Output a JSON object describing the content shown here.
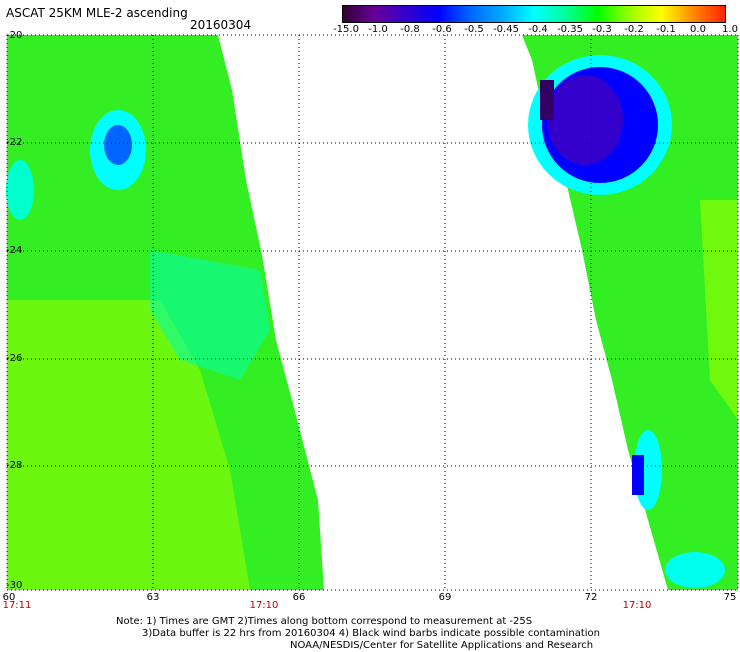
{
  "header": {
    "title": "ASCAT 25KM MLE-2 ascending",
    "date": "20160304"
  },
  "colorbar": {
    "labels": [
      "-15.0",
      "-1.0",
      "-0.8",
      "-0.6",
      "-0.5",
      "-0.45",
      "-0.4",
      "-0.35",
      "-0.3",
      "-0.2",
      "-0.1",
      "0.0",
      "1.0"
    ],
    "colors": [
      "#330033",
      "#660099",
      "#3300cc",
      "#0000ff",
      "#0066ff",
      "#00aaff",
      "#00ffff",
      "#00ff99",
      "#00ff00",
      "#99ff00",
      "#ffff00",
      "#ff8800",
      "#ff2200"
    ]
  },
  "axes": {
    "y_labels": [
      "-20",
      "-22",
      "-24",
      "-26",
      "-28",
      "-30"
    ],
    "x_labels": [
      "60",
      "63",
      "66",
      "69",
      "72",
      "75"
    ],
    "time_labels": [
      "17:11",
      "17:10",
      "17:10"
    ]
  },
  "notes": {
    "line1": "Note: 1) Times are GMT 2)Times along bottom correspond to measurement at -25S",
    "line2": "3)Data buffer is 22 hrs from 20160304 4) Black wind barbs indicate possible contamination",
    "line3": "NOAA/NESDIS/Center for Satellite Applications and Research"
  }
}
